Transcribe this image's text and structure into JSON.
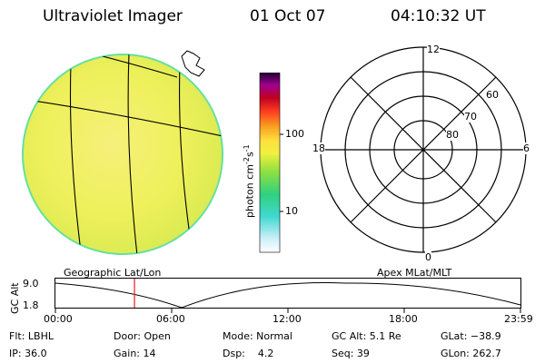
{
  "header": {
    "instrument": "Ultraviolet Imager",
    "date": "01 Oct 07",
    "time": "04:10:32 UT"
  },
  "colorbar": {
    "unit_label": "photon cm",
    "unit_exp1": "-2",
    "unit_mid": "s",
    "unit_exp2": "-1",
    "tick_100": "100",
    "tick_10": "10"
  },
  "polar_plot": {
    "mlt_top": "12",
    "mlt_left": "18",
    "mlt_right": "6",
    "mlt_bottom": "0",
    "lat_60": "60",
    "lat_70": "70",
    "lat_80": "80"
  },
  "orbit_plot": {
    "geo_label": "Geographic Lat/Lon",
    "apex_label": "Apex  MLat/MLT",
    "axis_label": "GC Alt",
    "y_top": "9.0",
    "y_bottom": "1.8",
    "x_ticks": [
      "00:00",
      "06:00",
      "12:00",
      "18:00",
      "23:59"
    ],
    "current_time_fraction": 0.17
  },
  "status": {
    "flt": "Flt: LBHL",
    "door": "Door: Open",
    "mode": "Mode: Normal",
    "gc_alt": "GC Alt: 5.1 Re",
    "glat": "GLat: −38.9",
    "ip": "IP: 36.0",
    "gain": "Gain: 14",
    "dsp_label": "Dsp:",
    "dsp_value": "4.2",
    "seq": "Seq: 39",
    "glon": "GLon: 262.7"
  },
  "colors": {
    "earth_fill": "#eef05a",
    "earth_limb": "#66e0a0",
    "marker": "#e02020"
  }
}
